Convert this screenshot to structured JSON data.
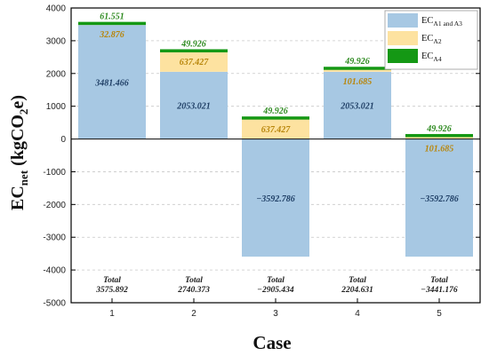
{
  "chart_data": {
    "type": "bar",
    "stacked": true,
    "categories": [
      "1",
      "2",
      "3",
      "4",
      "5"
    ],
    "series": [
      {
        "name": "EC_A1 and A3",
        "values": [
          3481.466,
          2053.021,
          -3592.786,
          2053.021,
          -3592.786
        ],
        "labels": [
          "3481.466",
          "2053.021",
          "−3592.786",
          "2053.021",
          "−3592.786"
        ],
        "color": "#a7c8e3"
      },
      {
        "name": "EC_A2",
        "values": [
          32.876,
          637.427,
          637.427,
          101.685,
          101.685
        ],
        "labels": [
          "32.876",
          "637.427",
          "637.427",
          "101.685",
          "101.685"
        ],
        "color": "#fde2a0"
      },
      {
        "name": "EC_A4",
        "values": [
          61.551,
          49.926,
          49.926,
          49.926,
          49.926
        ],
        "labels": [
          "61.551",
          "49.926",
          "49.926",
          "49.926",
          "49.926"
        ],
        "color": "#149814"
      }
    ],
    "totals": {
      "label": "Total",
      "values": [
        "3575.892",
        "2740.373",
        "−2905.434",
        "2204.631",
        "−3441.176"
      ]
    },
    "xlabel": "Case",
    "ylabel": {
      "main": "EC",
      "sub": "net",
      "unit_pre": " (kgCO",
      "unit_sub": "2",
      "unit_post": "e)"
    },
    "yticks": [
      "4000",
      "3000",
      "2000",
      "1000",
      "0",
      "-1000",
      "-2000",
      "-3000",
      "-4000",
      "-5000"
    ],
    "ylim": [
      -5000,
      4000
    ],
    "grid": true,
    "legend_position": "top-right",
    "legend": [
      {
        "main": "EC",
        "sub": "A1 and A3",
        "color": "#a7c8e3"
      },
      {
        "main": "EC",
        "sub": "A2",
        "color": "#fde2a0"
      },
      {
        "main": "EC",
        "sub": "A4",
        "color": "#149814"
      }
    ],
    "label_colors": {
      "a13": "#1f3f66",
      "a2": "#b8860b",
      "a4": "#2d8a1f"
    }
  }
}
